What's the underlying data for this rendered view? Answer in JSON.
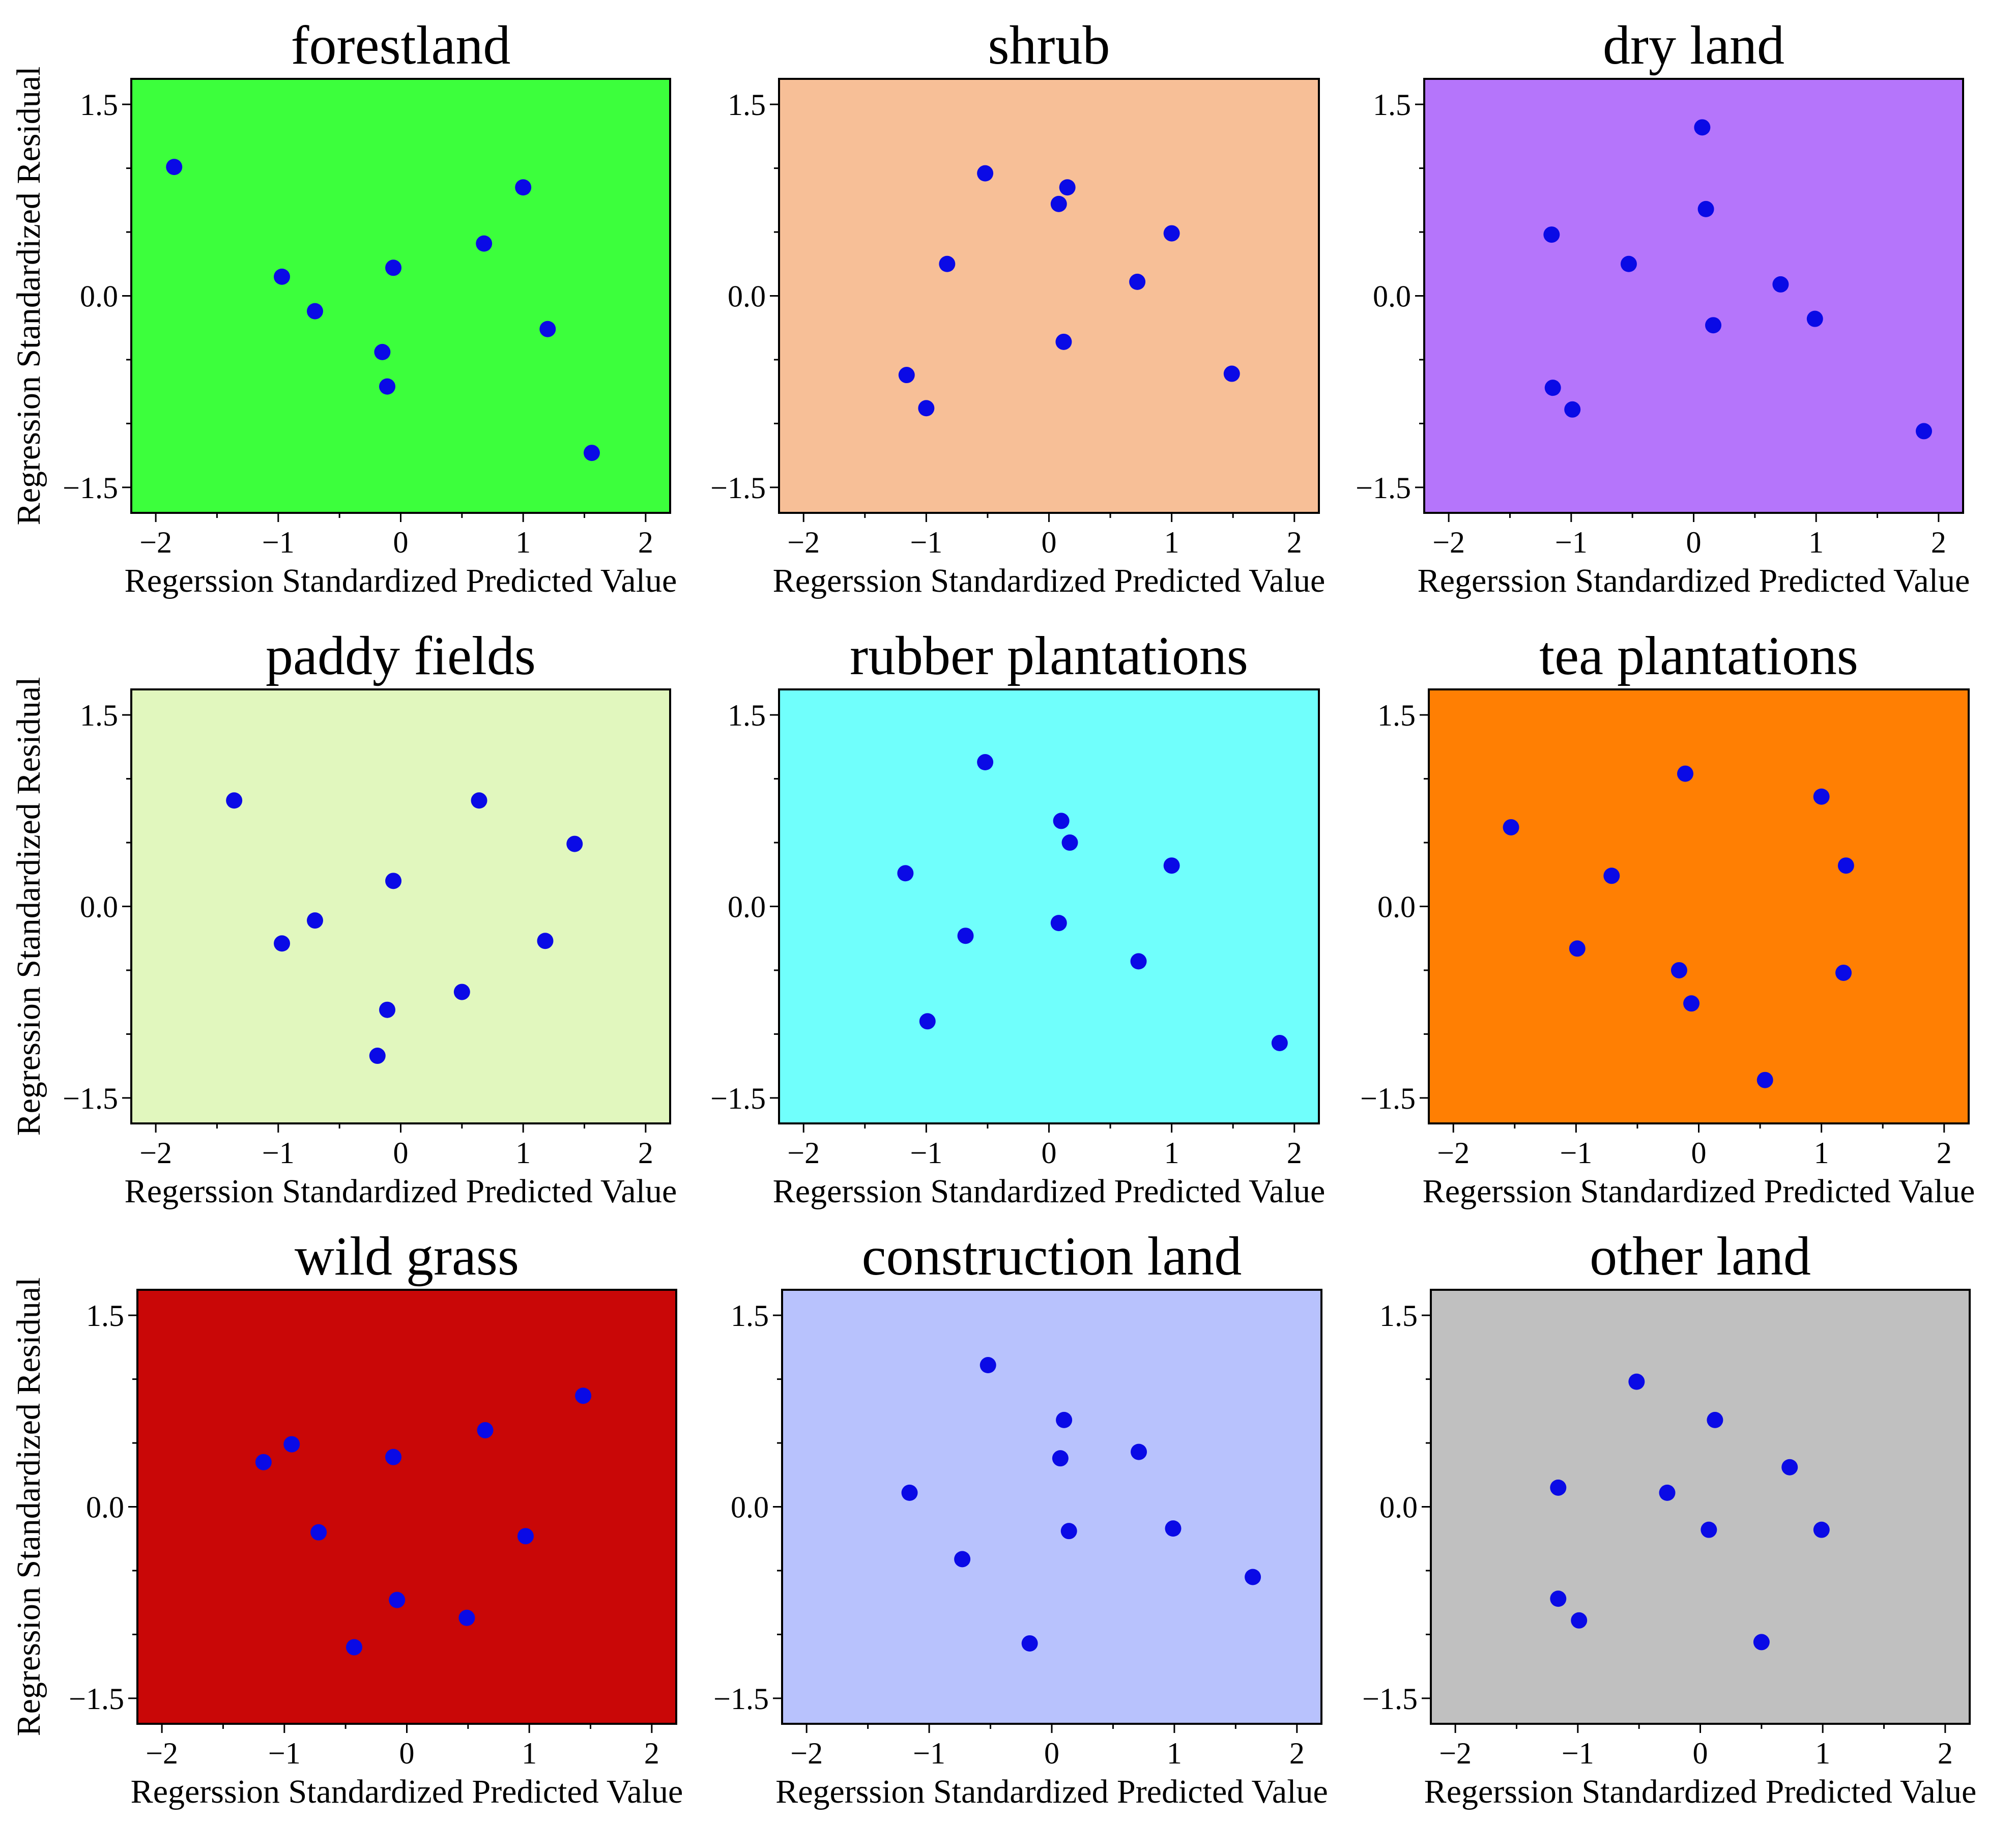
{
  "figure": {
    "point_color": "#0a0ae6",
    "axis_color": "#000000"
  },
  "chart_data": [
    {
      "type": "scatter",
      "title": "forestland",
      "background": "#3cff3c",
      "xlabel": "Regerssion Standardized Predicted Value",
      "ylabel": "Regression Standardized Residual",
      "xlim": [
        -2.2,
        2.2
      ],
      "ylim": [
        -1.7,
        1.7
      ],
      "xticks": [
        -2,
        -1,
        0,
        1,
        2
      ],
      "xtick_labels": [
        "−2",
        "−1",
        "0",
        "1",
        "2"
      ],
      "yticks": [
        -1.5,
        0,
        1.5
      ],
      "ytick_labels": [
        "−1.5",
        "0.0",
        "1.5"
      ],
      "x": [
        -1.85,
        -0.97,
        -0.7,
        -0.06,
        -0.15,
        -0.11,
        0.68,
        1.0,
        1.2,
        1.56
      ],
      "y": [
        1.01,
        0.15,
        -0.12,
        0.22,
        -0.44,
        -0.71,
        0.41,
        0.85,
        -0.26,
        -1.23
      ]
    },
    {
      "type": "scatter",
      "title": "shrub",
      "background": "#f7bf97",
      "xlabel": "Regerssion Standardized Predicted Value",
      "ylabel": "",
      "xlim": [
        -2.2,
        2.2
      ],
      "ylim": [
        -1.7,
        1.7
      ],
      "xticks": [
        -2,
        -1,
        0,
        1,
        2
      ],
      "xtick_labels": [
        "−2",
        "−1",
        "0",
        "1",
        "2"
      ],
      "yticks": [
        -1.5,
        0,
        1.5
      ],
      "ytick_labels": [
        "−1.5",
        "0.0",
        "1.5"
      ],
      "x": [
        -0.52,
        -0.83,
        -1.16,
        -1.0,
        0.08,
        0.15,
        0.12,
        0.72,
        1.0,
        1.49
      ],
      "y": [
        0.96,
        0.25,
        -0.62,
        -0.88,
        0.72,
        0.85,
        -0.36,
        0.11,
        0.49,
        -0.61
      ]
    },
    {
      "type": "scatter",
      "title": "dry land",
      "background": "#b575fb",
      "xlabel": "Regerssion Standardized Predicted Value",
      "ylabel": "",
      "xlim": [
        -2.2,
        2.2
      ],
      "ylim": [
        -1.7,
        1.7
      ],
      "xticks": [
        -2,
        -1,
        0,
        1,
        2
      ],
      "xtick_labels": [
        "−2",
        "−1",
        "0",
        "1",
        "2"
      ],
      "yticks": [
        -1.5,
        0,
        1.5
      ],
      "ytick_labels": [
        "−1.5",
        "0.0",
        "1.5"
      ],
      "x": [
        -1.16,
        -0.53,
        -1.15,
        -0.99,
        0.07,
        0.1,
        0.16,
        0.71,
        0.99,
        1.88
      ],
      "y": [
        0.48,
        0.25,
        -0.72,
        -0.89,
        1.32,
        0.68,
        -0.23,
        0.09,
        -0.18,
        -1.06
      ]
    },
    {
      "type": "scatter",
      "title": "paddy fields",
      "background": "#e1f7be",
      "xlabel": "Regerssion Standardized Predicted Value",
      "ylabel": "Regression Standardized Residual",
      "xlim": [
        -2.2,
        2.2
      ],
      "ylim": [
        -1.7,
        1.7
      ],
      "xticks": [
        -2,
        -1,
        0,
        1,
        2
      ],
      "xtick_labels": [
        "−2",
        "−1",
        "0",
        "1",
        "2"
      ],
      "yticks": [
        -1.5,
        0,
        1.5
      ],
      "ytick_labels": [
        "−1.5",
        "0.0",
        "1.5"
      ],
      "x": [
        -1.36,
        -0.97,
        -0.7,
        -0.06,
        -0.11,
        -0.19,
        0.5,
        0.64,
        1.18,
        1.42
      ],
      "y": [
        0.83,
        -0.29,
        -0.11,
        0.2,
        -0.81,
        -1.17,
        -0.67,
        0.83,
        -0.27,
        0.49
      ]
    },
    {
      "type": "scatter",
      "title": "rubber plantations",
      "background": "#70fffc",
      "xlabel": "Regerssion Standardized Predicted Value",
      "ylabel": "",
      "xlim": [
        -2.2,
        2.2
      ],
      "ylim": [
        -1.7,
        1.7
      ],
      "xticks": [
        -2,
        -1,
        0,
        1,
        2
      ],
      "xtick_labels": [
        "−2",
        "−1",
        "0",
        "1",
        "2"
      ],
      "yticks": [
        -1.5,
        0,
        1.5
      ],
      "ytick_labels": [
        "−1.5",
        "0.0",
        "1.5"
      ],
      "x": [
        -0.52,
        -1.17,
        -0.68,
        -0.99,
        0.1,
        0.17,
        0.08,
        0.73,
        1.0,
        1.88
      ],
      "y": [
        1.13,
        0.26,
        -0.23,
        -0.9,
        0.67,
        0.5,
        -0.13,
        -0.43,
        0.32,
        -1.07
      ]
    },
    {
      "type": "scatter",
      "title": "tea plantations",
      "background": "#ff7f03",
      "xlabel": "Regerssion Standardized Predicted Value",
      "ylabel": "",
      "xlim": [
        -2.2,
        2.2
      ],
      "ylim": [
        -1.7,
        1.7
      ],
      "xticks": [
        -2,
        -1,
        0,
        1,
        2
      ],
      "xtick_labels": [
        "−2",
        "−1",
        "0",
        "1",
        "2"
      ],
      "yticks": [
        -1.5,
        0,
        1.5
      ],
      "ytick_labels": [
        "−1.5",
        "0.0",
        "1.5"
      ],
      "x": [
        -1.53,
        -0.71,
        -0.99,
        -0.11,
        -0.16,
        -0.06,
        0.54,
        1.0,
        1.2,
        1.18
      ],
      "y": [
        0.62,
        0.24,
        -0.33,
        1.04,
        -0.5,
        -0.76,
        -1.36,
        0.86,
        0.32,
        -0.52
      ]
    },
    {
      "type": "scatter",
      "title": "wild grass",
      "background": "#c90707",
      "xlabel": "Regerssion Standardized Predicted Value",
      "ylabel": "Regression Standardized Residual",
      "xlim": [
        -2.2,
        2.2
      ],
      "ylim": [
        -1.7,
        1.7
      ],
      "xticks": [
        -2,
        -1,
        0,
        1,
        2
      ],
      "xtick_labels": [
        "−2",
        "−1",
        "0",
        "1",
        "2"
      ],
      "yticks": [
        -1.5,
        0,
        1.5
      ],
      "ytick_labels": [
        "−1.5",
        "0.0",
        "1.5"
      ],
      "x": [
        -1.17,
        -0.94,
        -0.72,
        -0.43,
        -0.11,
        -0.08,
        0.49,
        0.64,
        0.97,
        1.44
      ],
      "y": [
        0.35,
        0.49,
        -0.2,
        -1.1,
        0.39,
        -0.73,
        -0.87,
        0.6,
        -0.23,
        0.87
      ]
    },
    {
      "type": "scatter",
      "title": "construction land",
      "background": "#b8c2fd",
      "xlabel": "Regerssion Standardized Predicted Value",
      "ylabel": "",
      "xlim": [
        -2.2,
        2.2
      ],
      "ylim": [
        -1.7,
        1.7
      ],
      "xticks": [
        -2,
        -1,
        0,
        1,
        2
      ],
      "xtick_labels": [
        "−2",
        "−1",
        "0",
        "1",
        "2"
      ],
      "yticks": [
        -1.5,
        0,
        1.5
      ],
      "ytick_labels": [
        "−1.5",
        "0.0",
        "1.5"
      ],
      "x": [
        -0.52,
        -1.16,
        -0.73,
        -0.18,
        0.07,
        0.1,
        0.14,
        0.71,
        0.99,
        1.64
      ],
      "y": [
        1.11,
        0.11,
        -0.41,
        -1.07,
        0.38,
        0.68,
        -0.19,
        0.43,
        -0.17,
        -0.55
      ]
    },
    {
      "type": "scatter",
      "title": "other land",
      "background": "#c0c0c0",
      "xlabel": "Regerssion Standardized Predicted Value",
      "ylabel": "",
      "xlim": [
        -2.2,
        2.2
      ],
      "ylim": [
        -1.7,
        1.7
      ],
      "xticks": [
        -2,
        -1,
        0,
        1,
        2
      ],
      "xtick_labels": [
        "−2",
        "−1",
        "0",
        "1",
        "2"
      ],
      "yticks": [
        -1.5,
        0,
        1.5
      ],
      "ytick_labels": [
        "−1.5",
        "0.0",
        "1.5"
      ],
      "x": [
        -0.52,
        -1.16,
        -0.27,
        -1.16,
        -0.99,
        0.07,
        0.12,
        0.73,
        0.99,
        0.5
      ],
      "y": [
        0.98,
        0.15,
        0.11,
        -0.72,
        -0.89,
        -0.18,
        0.68,
        0.31,
        -0.18,
        -1.06
      ]
    }
  ]
}
